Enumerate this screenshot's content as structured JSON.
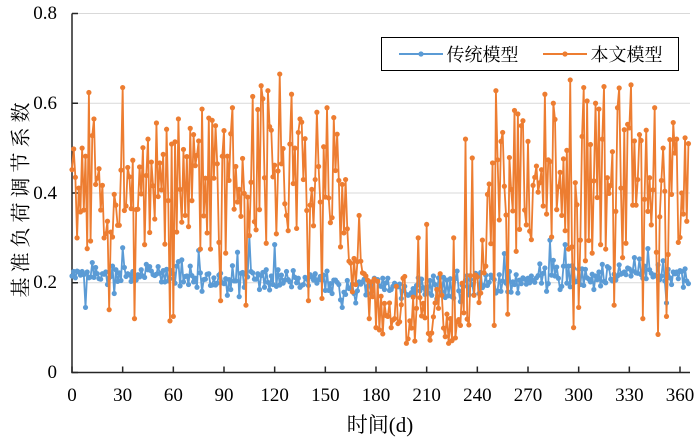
{
  "chart_data": {
    "type": "line",
    "title": "",
    "xlabel": "时间(d)",
    "ylabel": "基准负荷调节系数",
    "x_start": 0,
    "x_step": 1,
    "xlim": [
      0,
      366
    ],
    "ylim": [
      0,
      0.8
    ],
    "xticks": [
      0,
      30,
      60,
      90,
      120,
      150,
      180,
      210,
      240,
      270,
      300,
      330,
      360
    ],
    "xtick_labels": [
      "0",
      "30",
      "60",
      "90",
      "120",
      "150",
      "180",
      "210",
      "240",
      "270",
      "300",
      "330",
      "360"
    ],
    "yticks": [
      0,
      0.2,
      0.4,
      0.6,
      0.8
    ],
    "ytick_labels": [
      "0",
      "0.2",
      "0.4",
      "0.6",
      "0.8"
    ],
    "grid": {
      "horizontal": true,
      "vertical": false,
      "color": "#d9d9d9"
    },
    "axis_color": "#262626",
    "legend": {
      "position": "top",
      "border_color": "#000000",
      "entries": [
        "传统模型",
        "本文模型"
      ]
    },
    "series": [
      {
        "name": "传统模型",
        "color": "#5B9BD5",
        "marker": "circle",
        "line_style": "solid",
        "values": [
          0.215,
          0.225,
          0.211,
          0.226,
          0.224,
          0.217,
          0.225,
          0.218,
          0.145,
          0.224,
          0.211,
          0.213,
          0.245,
          0.212,
          0.234,
          0.22,
          0.209,
          0.208,
          0.22,
          0.219,
          0.224,
          0.196,
          0.211,
          0.214,
          0.237,
          0.176,
          0.229,
          0.203,
          0.222,
          0.205,
          0.278,
          0.234,
          0.214,
          0.22,
          0.218,
          0.203,
          0.225,
          0.21,
          0.206,
          0.218,
          0.213,
          0.229,
          0.215,
          0.212,
          0.241,
          0.229,
          0.236,
          0.226,
          0.218,
          0.216,
          0.219,
          0.236,
          0.221,
          0.202,
          0.227,
          0.202,
          0.23,
          0.204,
          0.209,
          0.227,
          0.22,
          0.199,
          0.237,
          0.247,
          0.193,
          0.251,
          0.202,
          0.214,
          0.215,
          0.196,
          0.237,
          0.216,
          0.202,
          0.21,
          0.19,
          0.272,
          0.222,
          0.181,
          0.207,
          0.208,
          0.219,
          0.22,
          0.194,
          0.195,
          0.211,
          0.195,
          0.199,
          0.217,
          0.221,
          0.2,
          0.198,
          0.209,
          0.172,
          0.207,
          0.185,
          0.238,
          0.204,
          0.204,
          0.268,
          0.169,
          0.221,
          0.223,
          0.19,
          0.218,
          0.213,
          0.305,
          0.225,
          0.222,
          0.208,
          0.208,
          0.22,
          0.185,
          0.216,
          0.223,
          0.19,
          0.229,
          0.201,
          0.184,
          0.215,
          0.196,
          0.285,
          0.192,
          0.229,
          0.195,
          0.217,
          0.199,
          0.206,
          0.225,
          0.207,
          0.202,
          0.191,
          0.227,
          0.212,
          0.2,
          0.21,
          0.19,
          0.194,
          0.196,
          0.212,
          0.208,
          0.194,
          0.218,
          0.213,
          0.206,
          0.22,
          0.199,
          0.207,
          0.214,
          0.206,
          0.217,
          0.183,
          0.226,
          0.183,
          0.198,
          0.176,
          0.206,
          0.206,
          0.201,
          0.196,
          0.162,
          0.145,
          0.179,
          0.174,
          0.205,
          0.187,
          0.189,
          0.197,
          0.176,
          0.155,
          0.182,
          0.202,
          0.197,
          0.202,
          0.208,
          0.173,
          0.192,
          0.198,
          0.176,
          0.192,
          0.21,
          0.207,
          0.207,
          0.193,
          0.192,
          0.21,
          0.185,
          0.2,
          0.21,
          0.183,
          0.185,
          0.192,
          0.199,
          0.195,
          0.191,
          0.197,
          0.165,
          0.182,
          0.192,
          0.174,
          0.172,
          0.174,
          0.178,
          0.187,
          0.174,
          0.194,
          0.211,
          0.182,
          0.208,
          0.189,
          0.174,
          0.19,
          0.177,
          0.205,
          0.172,
          0.215,
          0.196,
          0.164,
          0.211,
          0.212,
          0.18,
          0.212,
          0.167,
          0.206,
          0.171,
          0.209,
          0.169,
          0.166,
          0.209,
          0.226,
          0.182,
          0.158,
          0.195,
          0.192,
          0.206,
          0.216,
          0.173,
          0.207,
          0.196,
          0.173,
          0.221,
          0.216,
          0.176,
          0.223,
          0.189,
          0.194,
          0.217,
          0.194,
          0.201,
          0.217,
          0.211,
          0.207,
          0.177,
          0.182,
          0.218,
          0.181,
          0.204,
          0.265,
          0.199,
          0.18,
          0.225,
          0.179,
          0.202,
          0.196,
          0.218,
          0.177,
          0.206,
          0.198,
          0.211,
          0.208,
          0.197,
          0.21,
          0.2,
          0.215,
          0.205,
          0.201,
          0.211,
          0.216,
          0.242,
          0.199,
          0.221,
          0.233,
          0.181,
          0.198,
          0.295,
          0.217,
          0.25,
          0.215,
          0.235,
          0.21,
          0.185,
          0.192,
          0.237,
          0.285,
          0.199,
          0.237,
          0.191,
          0.238,
          0.232,
          0.202,
          0.203,
          0.23,
          0.196,
          0.231,
          0.194,
          0.23,
          0.211,
          0.208,
          0.202,
          0.219,
          0.185,
          0.215,
          0.207,
          0.224,
          0.193,
          0.241,
          0.203,
          0.2,
          0.236,
          0.233,
          0.208,
          0.204,
          0.219,
          0.206,
          0.215,
          0.24,
          0.219,
          0.221,
          0.224,
          0.218,
          0.233,
          0.231,
          0.215,
          0.226,
          0.256,
          0.222,
          0.221,
          0.253,
          0.218,
          0.21,
          0.237,
          0.209,
          0.276,
          0.229,
          0.221,
          0.213,
          0.217,
          0.215,
          0.24,
          0.207,
          0.215,
          0.249,
          0.204,
          0.155,
          0.23,
          0.211,
          0.196,
          0.224,
          0.22,
          0.224,
          0.209,
          0.227,
          0.225,
          0.19,
          0.231,
          0.204,
          0.198
        ]
      },
      {
        "name": "本文模型",
        "color": "#ED7D31",
        "marker": "circle",
        "line_style": "solid",
        "values": [
          0.452,
          0.498,
          0.435,
          0.3,
          0.411,
          0.358,
          0.5,
          0.362,
          0.482,
          0.276,
          0.624,
          0.293,
          0.528,
          0.565,
          0.419,
          0.433,
          0.454,
          0.362,
          0.417,
          0.3,
          0.309,
          0.337,
          0.14,
          0.313,
          0.302,
          0.397,
          0.373,
          0.328,
          0.328,
          0.451,
          0.635,
          0.361,
          0.371,
          0.457,
          0.436,
          0.365,
          0.473,
          0.12,
          0.363,
          0.364,
          0.458,
          0.398,
          0.501,
          0.285,
          0.439,
          0.52,
          0.312,
          0.469,
          0.416,
          0.342,
          0.556,
          0.392,
          0.467,
          0.407,
          0.486,
          0.286,
          0.542,
          0.383,
          0.115,
          0.509,
          0.125,
          0.514,
          0.313,
          0.565,
          0.408,
          0.335,
          0.497,
          0.35,
          0.481,
          0.325,
          0.544,
          0.383,
          0.53,
          0.461,
          0.484,
          0.516,
          0.275,
          0.587,
          0.349,
          0.433,
          0.311,
          0.567,
          0.275,
          0.562,
          0.433,
          0.55,
          0.465,
          0.29,
          0.16,
          0.482,
          0.539,
          0.266,
          0.482,
          0.428,
          0.532,
          0.59,
          0.364,
          0.459,
          0.38,
          0.408,
          0.348,
          0.477,
          0.399,
          0.15,
          0.391,
          0.305,
          0.424,
          0.615,
          0.336,
          0.318,
          0.586,
          0.363,
          0.639,
          0.61,
          0.434,
          0.288,
          0.628,
          0.548,
          0.54,
          0.436,
          0.462,
          0.309,
          0.449,
          0.665,
          0.465,
          0.499,
          0.376,
          0.35,
          0.316,
          0.509,
          0.62,
          0.421,
          0.5,
          0.321,
          0.535,
          0.565,
          0.558,
          0.43,
          0.521,
          0.361,
          0.16,
          0.373,
          0.408,
          0.327,
          0.43,
          0.58,
          0.459,
          0.38,
          0.165,
          0.503,
          0.391,
          0.59,
          0.389,
          0.334,
          0.345,
          0.568,
          0.45,
          0.531,
          0.428,
          0.28,
          0.419,
          0.311,
          0.43,
          0.32,
          0.248,
          0.244,
          0.18,
          0.254,
          0.196,
          0.247,
          0.35,
          0.248,
          0.222,
          0.22,
          0.215,
          0.206,
          0.12,
          0.202,
          0.169,
          0.208,
          0.1,
          0.203,
          0.095,
          0.17,
          0.086,
          0.154,
          0.127,
          0.125,
          0.155,
          0.1,
          0.117,
          0.12,
          0.192,
          0.109,
          0.113,
          0.151,
          0.21,
          0.214,
          0.065,
          0.075,
          0.115,
          0.099,
          0.168,
          0.07,
          0.143,
          0.3,
          0.167,
          0.126,
          0.154,
          0.122,
          0.33,
          0.087,
          0.072,
          0.088,
          0.124,
          0.155,
          0.185,
          0.143,
          0.22,
          0.172,
          0.099,
          0.08,
          0.13,
          0.065,
          0.12,
          0.071,
          0.3,
          0.077,
          0.113,
          0.118,
          0.105,
          0.199,
          0.133,
          0.52,
          0.119,
          0.106,
          0.216,
          0.478,
          0.172,
          0.217,
          0.213,
          0.156,
          0.177,
          0.295,
          0.222,
          0.237,
          0.397,
          0.42,
          0.287,
          0.467,
          0.105,
          0.628,
          0.474,
          0.34,
          0.515,
          0.535,
          0.415,
          0.351,
          0.13,
          0.479,
          0.408,
          0.36,
          0.584,
          0.27,
          0.576,
          0.319,
          0.55,
          0.561,
          0.362,
          0.329,
          0.515,
          0.315,
          0.296,
          0.417,
          0.435,
          0.46,
          0.402,
          0.423,
          0.452,
          0.371,
          0.62,
          0.353,
          0.474,
          0.47,
          0.302,
          0.6,
          0.564,
          0.363,
          0.414,
          0.446,
          0.35,
          0.476,
          0.316,
          0.495,
          0.275,
          0.652,
          0.28,
          0.1,
          0.423,
          0.374,
          0.145,
          0.295,
          0.526,
          0.635,
          0.249,
          0.605,
          0.294,
          0.508,
          0.266,
          0.427,
          0.6,
          0.39,
          0.587,
          0.285,
          0.52,
          0.637,
          0.275,
          0.434,
          0.399,
          0.417,
          0.492,
          0.15,
          0.359,
          0.59,
          0.634,
          0.411,
          0.256,
          0.541,
          0.288,
          0.553,
          0.545,
          0.641,
          0.373,
          0.516,
          0.373,
          0.43,
          0.53,
          0.517,
          0.12,
          0.386,
          0.54,
          0.359,
          0.434,
          0.329,
          0.407,
          0.59,
          0.268,
          0.085,
          0.347,
          0.428,
          0.5,
          0.404,
          0.125,
          0.263,
          0.519,
          0.397,
          0.557,
          0.489,
          0.52,
          0.29,
          0.301,
          0.4,
          0.353,
          0.523,
          0.337,
          0.51
        ]
      }
    ]
  }
}
